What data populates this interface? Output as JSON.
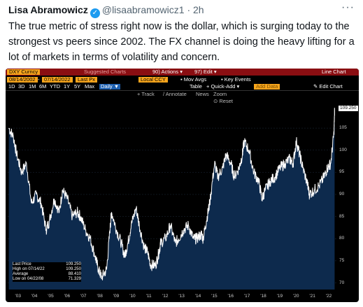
{
  "tweet": {
    "display_name": "Lisa Abramowicz",
    "handle": "@lisaabramowicz1",
    "separator": "·",
    "time": "2h",
    "more": "···",
    "text": "The true metric of stress right now is the dollar, which is surging today to the strongest vs peers since 2002. The FX channel is doing the heavy lifting for a lot of markets in terms of volatility and concern."
  },
  "terminal": {
    "security": "DXY Curncy",
    "suggested": "Suggested Charts",
    "actions": "90) Actions ▾",
    "edit": "97) Edit ▾",
    "chart_type": "Line Chart",
    "date_from": "08/14/2002",
    "date_to": "07/14/2022",
    "field": "Last Px",
    "currency": "Local CCY",
    "mov_avgs": "Mov Avgs",
    "key_events": "Key Events",
    "periods": [
      "1D",
      "3D",
      "1M",
      "6M",
      "YTD",
      "1Y",
      "5Y",
      "Max"
    ],
    "frequency": "Daily ▼",
    "table": "Table",
    "quick_add": "+ Quick-Add ▾",
    "add_data": "Add Data",
    "edit_chart": "✎ Edit Chart",
    "tools": [
      "+ Track",
      "/ Annotate",
      "News",
      "Zoom"
    ],
    "reset": "Reset"
  },
  "legend": [
    {
      "label": "Last Price",
      "value": "109.250"
    },
    {
      "label": "High on 07/14/22",
      "value": "109.250"
    },
    {
      "label": "Average",
      "value": "88.410"
    },
    {
      "label": "Low on 04/22/08",
      "value": "71.329"
    }
  ],
  "chart_data": {
    "type": "line",
    "x_ticks": [
      "'03",
      "'04",
      "'05",
      "'06",
      "'07",
      "'08",
      "'09",
      "'10",
      "'11",
      "'12",
      "'13",
      "'14",
      "'15",
      "'16",
      "'17",
      "'18",
      "'19",
      "'20",
      "'21",
      "'22"
    ],
    "y_ticks": [
      70,
      75,
      80,
      85,
      90,
      95,
      100,
      105
    ],
    "ylim": [
      68.5,
      111.5
    ],
    "last_value": "109.250",
    "series": [
      {
        "x": [
          2002.62,
          2002.9,
          2003.1,
          2003.4,
          2003.7,
          2004.0,
          2004.3,
          2004.6,
          2004.9,
          2005.1,
          2005.4,
          2005.7,
          2005.9,
          2006.2,
          2006.5,
          2006.8,
          2007.0,
          2007.3,
          2007.6,
          2007.9,
          2008.1,
          2008.3,
          2008.6,
          2008.8,
          2008.9,
          2009.2,
          2009.5,
          2009.7,
          2009.9,
          2010.1,
          2010.4,
          2010.6,
          2010.9,
          2011.1,
          2011.3,
          2011.6,
          2011.8,
          2011.9,
          2012.2,
          2012.5,
          2012.8,
          2013.0,
          2013.3,
          2013.6,
          2013.9,
          2014.1,
          2014.4,
          2014.5,
          2014.7,
          2014.9,
          2015.2,
          2015.4,
          2015.7,
          2015.9,
          2016.2,
          2016.4,
          2016.7,
          2016.9,
          2017.0,
          2017.3,
          2017.6,
          2017.9,
          2018.1,
          2018.3,
          2018.6,
          2018.9,
          2019.2,
          2019.5,
          2019.8,
          2020.0,
          2020.2,
          2020.4,
          2020.6,
          2020.9,
          2021.0,
          2021.3,
          2021.6,
          2021.9,
          2022.1,
          2022.3,
          2022.5,
          2022.54
        ],
        "values": [
          105,
          103,
          99,
          95,
          97,
          88,
          90,
          88,
          82,
          84,
          89,
          86,
          91,
          89,
          85,
          86,
          85,
          82,
          80,
          76,
          73,
          71.3,
          73,
          82,
          86,
          82,
          79,
          76,
          79,
          83,
          87,
          83,
          78,
          77,
          74,
          74,
          77,
          79,
          80,
          83,
          79,
          80,
          82,
          83,
          80,
          80,
          81,
          80,
          84,
          88,
          97,
          94,
          96,
          99,
          97,
          94,
          96,
          99,
          102,
          100,
          95,
          93,
          89,
          91,
          93,
          94,
          96,
          97,
          98,
          97,
          102,
          99,
          96,
          92,
          90,
          91,
          92,
          94,
          96,
          97,
          104,
          109.25
        ]
      }
    ]
  }
}
